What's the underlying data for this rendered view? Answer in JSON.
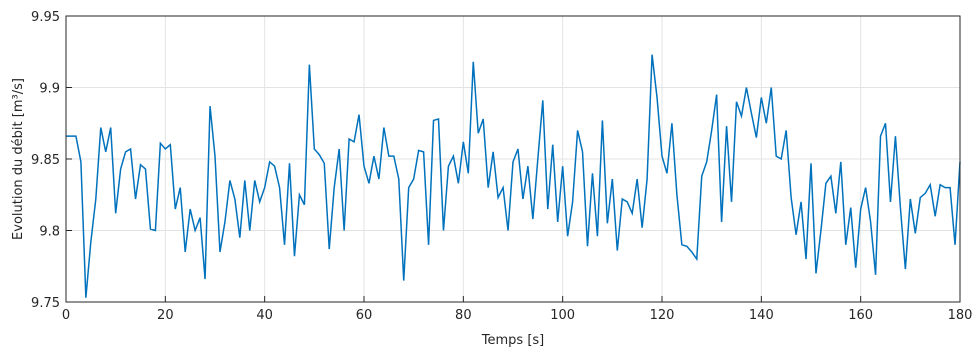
{
  "chart_data": {
    "type": "line",
    "xlabel": "Temps [s]",
    "ylabel": "Evolution du débit [m³/s]",
    "x": [
      0,
      1,
      2,
      3,
      4,
      5,
      6,
      7,
      8,
      9,
      10,
      11,
      12,
      13,
      14,
      15,
      16,
      17,
      18,
      19,
      20,
      21,
      22,
      23,
      24,
      25,
      26,
      27,
      28,
      29,
      30,
      31,
      32,
      33,
      34,
      35,
      36,
      37,
      38,
      39,
      40,
      41,
      42,
      43,
      44,
      45,
      46,
      47,
      48,
      49,
      50,
      51,
      52,
      53,
      54,
      55,
      56,
      57,
      58,
      59,
      60,
      61,
      62,
      63,
      64,
      65,
      66,
      67,
      68,
      69,
      70,
      71,
      72,
      73,
      74,
      75,
      76,
      77,
      78,
      79,
      80,
      81,
      82,
      83,
      84,
      85,
      86,
      87,
      88,
      89,
      90,
      91,
      92,
      93,
      94,
      95,
      96,
      97,
      98,
      99,
      100,
      101,
      102,
      103,
      104,
      105,
      106,
      107,
      108,
      109,
      110,
      111,
      112,
      113,
      114,
      115,
      116,
      117,
      118,
      119,
      120,
      121,
      122,
      123,
      124,
      125,
      126,
      127,
      128,
      129,
      130,
      131,
      132,
      133,
      134,
      135,
      136,
      137,
      138,
      139,
      140,
      141,
      142,
      143,
      144,
      145,
      146,
      147,
      148,
      149,
      150,
      151,
      152,
      153,
      154,
      155,
      156,
      157,
      158,
      159,
      160,
      161,
      162,
      163,
      164,
      165,
      166,
      167,
      168,
      169,
      170,
      171,
      172,
      173,
      174,
      175,
      176,
      177,
      178,
      179,
      180
    ],
    "series": [
      {
        "color": "#0072bd",
        "values": [
          9.866,
          9.866,
          9.866,
          9.848,
          9.753,
          9.792,
          9.822,
          9.872,
          9.855,
          9.872,
          9.812,
          9.843,
          9.855,
          9.857,
          9.822,
          9.846,
          9.843,
          9.801,
          9.8,
          9.861,
          9.857,
          9.86,
          9.815,
          9.83,
          9.785,
          9.815,
          9.8,
          9.809,
          9.766,
          9.887,
          9.852,
          9.785,
          9.806,
          9.835,
          9.822,
          9.795,
          9.835,
          9.8,
          9.835,
          9.82,
          9.83,
          9.848,
          9.845,
          9.83,
          9.79,
          9.847,
          9.782,
          9.825,
          9.818,
          9.916,
          9.857,
          9.853,
          9.847,
          9.787,
          9.83,
          9.857,
          9.8,
          9.864,
          9.862,
          9.881,
          9.845,
          9.833,
          9.852,
          9.836,
          9.872,
          9.852,
          9.852,
          9.836,
          9.765,
          9.83,
          9.836,
          9.856,
          9.855,
          9.79,
          9.877,
          9.878,
          9.8,
          9.845,
          9.852,
          9.833,
          9.862,
          9.84,
          9.918,
          9.868,
          9.878,
          9.83,
          9.855,
          9.823,
          9.83,
          9.8,
          9.848,
          9.857,
          9.822,
          9.845,
          9.808,
          9.85,
          9.891,
          9.815,
          9.86,
          9.806,
          9.845,
          9.796,
          9.82,
          9.87,
          9.855,
          9.789,
          9.84,
          9.796,
          9.877,
          9.805,
          9.836,
          9.786,
          9.822,
          9.82,
          9.812,
          9.836,
          9.802,
          9.836,
          9.923,
          9.893,
          9.852,
          9.84,
          9.875,
          9.825,
          9.79,
          9.789,
          9.785,
          9.78,
          9.838,
          9.848,
          9.87,
          9.895,
          9.806,
          9.873,
          9.82,
          9.89,
          9.88,
          9.9,
          9.882,
          9.865,
          9.893,
          9.875,
          9.9,
          9.852,
          9.85,
          9.87,
          9.823,
          9.797,
          9.82,
          9.78,
          9.847,
          9.77,
          9.8,
          9.833,
          9.838,
          9.812,
          9.848,
          9.79,
          9.816,
          9.774,
          9.815,
          9.83,
          9.806,
          9.769,
          9.866,
          9.875,
          9.82,
          9.866,
          9.816,
          9.773,
          9.822,
          9.798,
          9.823,
          9.826,
          9.832,
          9.81,
          9.832,
          9.83,
          9.83,
          9.79,
          9.848
        ]
      }
    ],
    "xlim": [
      0,
      180
    ],
    "xticks": [
      0,
      20,
      40,
      60,
      80,
      100,
      120,
      140,
      160,
      180
    ],
    "ylim": [
      9.75,
      9.95
    ],
    "yticks": [
      9.75,
      9.8,
      9.85,
      9.9,
      9.95
    ],
    "grid": true
  }
}
